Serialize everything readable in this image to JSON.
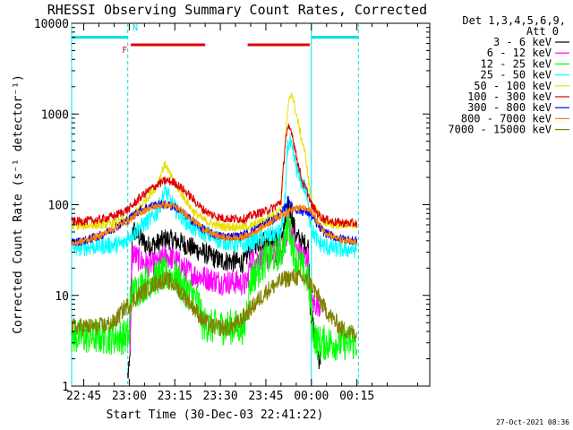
{
  "chart_data": {
    "type": "line",
    "title": "RHESSI Observing Summary Count Rates, Corrected",
    "xlabel": "Start Time (30-Dec-03 22:41:22)",
    "ylabel": "Corrected Count Rate (s⁻¹ detector⁻¹)",
    "yscale": "log",
    "ylim": [
      1,
      10000
    ],
    "xlim_minutes": [
      -19,
      99
    ],
    "x_unit": "minutes after 23:00 UT",
    "x_ticks": [
      {
        "label": "22:45",
        "t": -15
      },
      {
        "label": "23:00",
        "t": 0
      },
      {
        "label": "23:15",
        "t": 15
      },
      {
        "label": "23:30",
        "t": 30
      },
      {
        "label": "23:45",
        "t": 45
      },
      {
        "label": "00:00",
        "t": 60
      },
      {
        "label": "00:15",
        "t": 75
      }
    ],
    "y_ticks": [
      {
        "label": "1",
        "v": 1
      },
      {
        "label": "10",
        "v": 10
      },
      {
        "label": "100",
        "v": 100
      },
      {
        "label": "1000",
        "v": 1000
      },
      {
        "label": "10000",
        "v": 10000
      }
    ],
    "legend_header": [
      "Det 1,3,4,5,6,9,",
      "Att 0"
    ],
    "flag_labels": [
      {
        "text": "F",
        "t": -1.5,
        "color": "#e00000"
      },
      {
        "text": "N",
        "t": 2.0,
        "color": "#00e0e0"
      }
    ],
    "flag_segments": [
      {
        "name": "night",
        "color": "#00e0e0",
        "level": 7000,
        "ranges": [
          [
            -19,
            -0.5
          ],
          [
            60,
            75.5
          ]
        ]
      },
      {
        "name": "flare",
        "color": "#e00000",
        "level": 5800,
        "ranges": [
          [
            0.5,
            25
          ],
          [
            39,
            59.5
          ]
        ]
      }
    ],
    "vlines": [
      {
        "t": -19,
        "style": "solid"
      },
      {
        "t": -0.5,
        "style": "dashed"
      },
      {
        "t": 60,
        "style": "solid"
      },
      {
        "t": 75.5,
        "style": "dashed"
      }
    ],
    "series": [
      {
        "name": "3 - 6 keV",
        "color": "#000000",
        "x": [
          -0.5,
          0,
          0.4,
          1,
          3,
          6,
          9,
          12,
          15,
          18,
          21,
          24,
          27,
          30,
          33,
          36,
          38,
          40,
          42,
          45,
          48,
          50,
          51.5,
          52.5,
          53.5,
          55,
          57,
          59,
          59.6,
          60.4,
          61.5,
          62.5,
          63
        ],
        "y": [
          1.3,
          1.5,
          4,
          55,
          45,
          35,
          37,
          42,
          40,
          37,
          33,
          30,
          27,
          24,
          24,
          23,
          23,
          35,
          38,
          40,
          42,
          45,
          60,
          100,
          75,
          45,
          38,
          35,
          8,
          5,
          3,
          2,
          2
        ]
      },
      {
        "name": "6 - 12 keV",
        "color": "#ff00ff",
        "x": [
          0.2,
          1,
          3,
          6,
          9,
          12,
          15,
          18,
          21,
          24,
          27,
          30,
          33,
          36,
          38,
          39,
          40,
          42,
          45,
          48,
          50,
          51.5,
          52.5,
          53.5,
          55,
          57,
          59,
          59.6,
          61,
          63
        ],
        "y": [
          3,
          30,
          25,
          22,
          22,
          27,
          25,
          20,
          17,
          16,
          15,
          14,
          14,
          14,
          13,
          15,
          25,
          25,
          26,
          28,
          30,
          40,
          65,
          50,
          32,
          28,
          25,
          8,
          8,
          8
        ]
      },
      {
        "name": "12 - 25 keV",
        "color": "#00ff00",
        "x": [
          -19,
          -10,
          -5,
          -1,
          0,
          0.3,
          3,
          6,
          9,
          12,
          15,
          18,
          21,
          23,
          24,
          27,
          30,
          33,
          36,
          38,
          40,
          42,
          45,
          48,
          50,
          51.5,
          52.5,
          53.5,
          55,
          57,
          59,
          60.5,
          62,
          65,
          70,
          75
        ],
        "y": [
          3.5,
          3.5,
          3.5,
          3.5,
          3.5,
          10,
          12,
          14,
          16,
          17,
          16,
          12,
          10,
          8,
          5,
          4.5,
          4.5,
          4.5,
          4.5,
          4.5,
          15,
          18,
          25,
          28,
          30,
          45,
          60,
          40,
          25,
          20,
          15,
          4,
          3,
          3,
          3,
          3
        ]
      },
      {
        "name": "25 - 50 keV",
        "color": "#00ffff",
        "x": [
          -19,
          -15,
          -10,
          -5,
          -2,
          0,
          3,
          6,
          9,
          11,
          12,
          13,
          15,
          18,
          21,
          24,
          27,
          30,
          33,
          36,
          38,
          40,
          42,
          45,
          48,
          50,
          51.5,
          52,
          53,
          54,
          56,
          58,
          59.5,
          60.5,
          62,
          64,
          67,
          70,
          75
        ],
        "y": [
          33,
          34,
          35,
          36,
          37,
          45,
          55,
          65,
          80,
          120,
          145,
          120,
          90,
          70,
          55,
          50,
          45,
          40,
          38,
          36,
          36,
          38,
          42,
          45,
          48,
          50,
          120,
          420,
          480,
          350,
          200,
          150,
          70,
          50,
          40,
          35,
          33,
          32,
          32
        ]
      },
      {
        "name": "50 - 100 keV",
        "color": "#e8e000",
        "x": [
          -19,
          -15,
          -10,
          -5,
          0,
          3,
          6,
          9,
          11,
          12,
          13,
          15,
          18,
          21,
          24,
          27,
          30,
          33,
          36,
          38,
          40,
          42,
          45,
          48,
          50,
          51.5,
          52.5,
          53.5,
          54.5,
          56,
          58,
          60,
          62,
          64,
          67,
          70,
          75
        ],
        "y": [
          58,
          59,
          60,
          62,
          70,
          90,
          120,
          160,
          250,
          280,
          230,
          170,
          120,
          85,
          70,
          62,
          58,
          57,
          57,
          57,
          58,
          62,
          68,
          80,
          90,
          600,
          1300,
          1750,
          1200,
          700,
          350,
          110,
          80,
          65,
          60,
          60,
          60
        ]
      },
      {
        "name": "100 - 300 keV",
        "color": "#e00000",
        "x": [
          -19,
          -15,
          -10,
          -5,
          0,
          3,
          6,
          9,
          12,
          15,
          18,
          21,
          24,
          27,
          30,
          33,
          36,
          38,
          40,
          42,
          45,
          48,
          50,
          51.5,
          52.5,
          53.5,
          55,
          57,
          59,
          60,
          62,
          64,
          67,
          70,
          75
        ],
        "y": [
          65,
          66,
          68,
          75,
          90,
          115,
          140,
          165,
          185,
          175,
          145,
          115,
          90,
          78,
          72,
          70,
          70,
          70,
          75,
          80,
          85,
          95,
          110,
          550,
          700,
          650,
          350,
          180,
          130,
          100,
          80,
          70,
          65,
          63,
          62
        ]
      },
      {
        "name": "300 - 800 keV",
        "color": "#0000ff",
        "x": [
          -19,
          -15,
          -10,
          -5,
          0,
          3,
          6,
          9,
          12,
          15,
          18,
          21,
          24,
          27,
          30,
          33,
          36,
          39,
          42,
          45,
          48,
          50,
          51.5,
          52.5,
          53.5,
          55,
          57,
          59,
          60,
          62,
          64,
          67,
          70,
          75
        ],
        "y": [
          38,
          40,
          45,
          55,
          70,
          85,
          95,
          100,
          100,
          95,
          80,
          65,
          55,
          48,
          45,
          45,
          45,
          48,
          55,
          62,
          70,
          78,
          95,
          120,
          95,
          88,
          85,
          82,
          75,
          60,
          50,
          45,
          42,
          40
        ]
      },
      {
        "name": "800 - 7000 keV",
        "color": "#ff8000",
        "x": [
          -19,
          -15,
          -10,
          -5,
          0,
          3,
          6,
          9,
          12,
          15,
          18,
          21,
          24,
          27,
          30,
          33,
          36,
          39,
          42,
          45,
          48,
          51,
          54,
          57,
          60,
          62,
          64,
          67,
          70,
          75
        ],
        "y": [
          37,
          40,
          45,
          55,
          68,
          80,
          90,
          97,
          100,
          95,
          82,
          68,
          56,
          48,
          44,
          43,
          43,
          46,
          52,
          60,
          70,
          80,
          90,
          92,
          85,
          65,
          52,
          45,
          40,
          38
        ]
      },
      {
        "name": "7000 - 15000 keV",
        "color": "#808000",
        "x": [
          -19,
          -15,
          -10,
          -5,
          -2,
          0,
          3,
          6,
          9,
          12,
          15,
          18,
          21,
          24,
          27,
          30,
          33,
          36,
          39,
          42,
          45,
          48,
          51,
          54,
          57,
          60,
          62,
          64,
          67,
          70,
          73,
          75
        ],
        "y": [
          4.5,
          4.5,
          4.5,
          5,
          7,
          8,
          10,
          12,
          14,
          15,
          13,
          10,
          7.5,
          5.5,
          4.6,
          4.4,
          4.4,
          5,
          6.5,
          8.5,
          11,
          13,
          15,
          16,
          15.5,
          13,
          10,
          7.5,
          5.5,
          4.3,
          3.9,
          3.8
        ]
      }
    ]
  },
  "timestamp": "27-Oct-2021 08:36"
}
